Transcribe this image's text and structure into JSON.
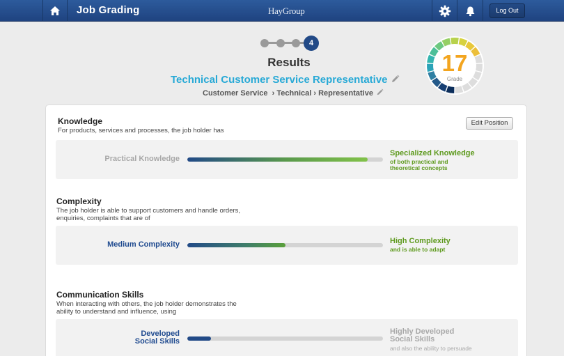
{
  "header": {
    "app_title": "Job Grading",
    "logo_text": "HayGroup",
    "logout_label": "Log Out"
  },
  "stepper": {
    "current_step": "4",
    "total_steps": 4
  },
  "results": {
    "title": "Results",
    "job_title": "Technical Customer Service Representative",
    "job_path": "Customer Service  › Technical › Representative"
  },
  "grade": {
    "value": "17",
    "label": "Grade",
    "ring_colors": [
      "#0c2e5b",
      "#163f73",
      "#245a8a",
      "#2f7fa3",
      "#2ba3b8",
      "#34b5b0",
      "#4cbf99",
      "#6cc880",
      "#95cf63",
      "#b8d24c",
      "#d7d23f",
      "#e8c83a",
      "#ecbf3a",
      "#dddddd",
      "#dddddd",
      "#dddddd",
      "#dddddd",
      "#dddddd",
      "#dddddd"
    ]
  },
  "actions": {
    "edit_position_label": "Edit Position"
  },
  "sections": [
    {
      "title": "Knowledge",
      "description": "For products, services and processes, the job holder has",
      "left_label": "Practical Knowledge",
      "right_label": "Specialized Knowledge",
      "right_sub": "of both practical and theoretical concepts",
      "progress": 0.92
    },
    {
      "title": "Complexity",
      "description": "The job holder is able to support customers and handle orders, enquiries, complaints that are of",
      "left_label": "Medium Complexity",
      "right_label": "High Complexity",
      "right_sub": "and is able to adapt",
      "progress": 0.5
    },
    {
      "title": "Communication Skills",
      "description": "When interacting with others, the job holder demonstrates the ability to understand and influence, using",
      "left_label": "Developed Social Skills",
      "right_label": "Highly Developed Social Skills",
      "right_sub": "and also the ability to persuade",
      "progress": 0.12
    }
  ],
  "colors": {
    "header_blue": "#224a87",
    "accent_cyan": "#27a9d6",
    "active_label_blue": "#1f4a8f",
    "target_green": "#5e9a1e",
    "inactive_gray": "#9e9e9e",
    "grade_orange": "#f3a51f"
  }
}
